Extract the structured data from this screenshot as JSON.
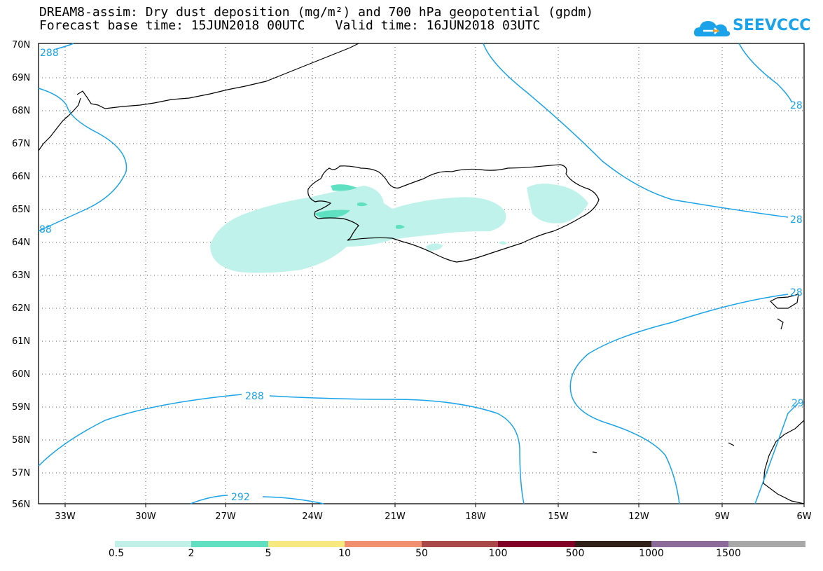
{
  "title": {
    "line1": "DREAM8-assim: Dry dust deposition (mg/m²) and 700 hPa geopotential (gpdm)",
    "line2": "Forecast base time: 15JUN2018 00UTC    Valid time: 16JUN2018 03UTC"
  },
  "logo": {
    "text": "SEEVCCC",
    "icon": "cloud-logo-icon",
    "color": "#1aa3e8"
  },
  "map": {
    "lat_labels": [
      "70N",
      "69N",
      "68N",
      "67N",
      "66N",
      "65N",
      "64N",
      "63N",
      "62N",
      "61N",
      "60N",
      "59N",
      "58N",
      "57N",
      "56N"
    ],
    "lon_labels": [
      "33W",
      "30W",
      "27W",
      "24W",
      "21W",
      "18W",
      "15W",
      "12W",
      "9W",
      "6W"
    ],
    "contour_labels": [
      "288",
      "88",
      "28",
      "28",
      "28",
      "288",
      "292",
      "29"
    ],
    "contour_color": "#1aa3e8",
    "dust_color_light": "#bff2ea",
    "dust_color_medium": "#5fe0c0"
  },
  "legend": {
    "labels": [
      "0.5",
      "2",
      "5",
      "10",
      "50",
      "100",
      "500",
      "1000",
      "1500"
    ],
    "colors": [
      "#c0f0e8",
      "#60e0c0",
      "#f8e880",
      "#f09070",
      "#a84848",
      "#800028",
      "#302018",
      "#8c6a9a",
      "#a8a8a8"
    ]
  }
}
